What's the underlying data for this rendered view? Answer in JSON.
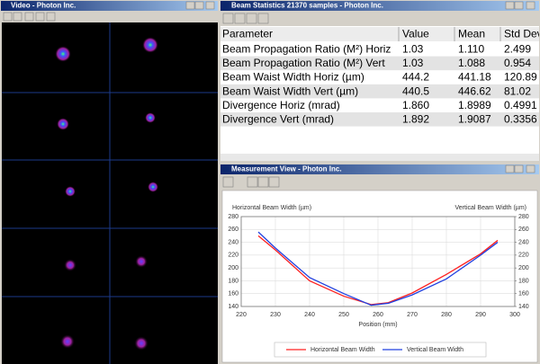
{
  "windows": [
    {
      "title": "Video - Photon Inc."
    },
    {
      "title": "Beam Statistics 21370 samples - Photon Inc."
    },
    {
      "title": "Measurement View - Photon Inc."
    }
  ],
  "table": {
    "header": [
      "Parameter",
      "Value",
      "Mean",
      "Std Dev"
    ],
    "rows": [
      [
        "Beam Propagation Ratio (M²) Horiz",
        "1.03",
        "1.110",
        "2.499"
      ],
      [
        "Beam Propagation Ratio (M²) Vert",
        "1.03",
        "1.088",
        "0.954"
      ],
      [
        "Beam Waist Width Horiz (µm)",
        "444.2",
        "441.18",
        "120.89"
      ],
      [
        "Beam Waist Width Vert (µm)",
        "440.5",
        "446.62",
        "81.02"
      ],
      [
        "Divergence Horiz (mrad)",
        "1.860",
        "1.8989",
        "0.4991"
      ],
      [
        "Divergence Vert (mrad)",
        "1.892",
        "1.9087",
        "0.3356"
      ]
    ]
  },
  "chart_data": {
    "type": "line",
    "ylabel": "Horizontal Beam Width (µm)",
    "y2label": "Vertical Beam Width (µm)",
    "xlabel": "Position (mm)",
    "x": [
      225,
      230,
      240,
      250,
      258,
      263,
      270,
      280,
      290,
      295
    ],
    "series": [
      {
        "name": "Horizontal Beam Width",
        "color": "#ff2020",
        "values": [
          250,
          228,
          180,
          156,
          143,
          146,
          161,
          190,
          222,
          243
        ]
      },
      {
        "name": "Vertical Beam Width",
        "color": "#2040e0",
        "axis": "y2",
        "values": [
          256,
          231,
          185,
          160,
          142,
          145,
          158,
          183,
          220,
          240
        ]
      }
    ],
    "xlim": [
      220,
      300
    ],
    "xticks": [
      220,
      230,
      240,
      250,
      260,
      270,
      280,
      290,
      300
    ],
    "ylim": [
      140,
      280
    ],
    "yticks": [
      140,
      160,
      180,
      200,
      220,
      240,
      260,
      280
    ],
    "y2lim": [
      140,
      280
    ],
    "y2ticks": [
      140,
      160,
      180,
      200,
      220,
      240,
      260,
      280
    ],
    "grid": true,
    "legend": "bottom"
  }
}
